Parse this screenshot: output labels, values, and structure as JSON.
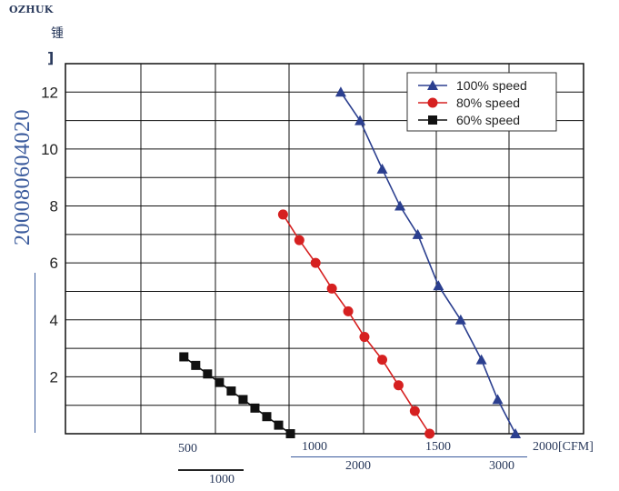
{
  "header": {
    "brand": "OZHUK",
    "corner_char": "锺",
    "corner_mark": "]",
    "vertical_stamp": "200080604020"
  },
  "chart_data": {
    "type": "line",
    "x_range": [
      0,
      3500
    ],
    "ylim": [
      0,
      13
    ],
    "yticks": [
      2,
      4,
      6,
      8,
      10,
      12
    ],
    "legend_position": "top-right",
    "grid": true,
    "series": [
      {
        "name": "100% speed",
        "marker": "triangle",
        "color": "#2b3f8f",
        "x": [
          1860,
          1990,
          2140,
          2260,
          2380,
          2520,
          2670,
          2810,
          2920,
          3040
        ],
        "y": [
          12,
          11,
          9.3,
          8,
          7,
          5.2,
          4,
          2.6,
          1.2,
          0
        ]
      },
      {
        "name": "80% speed",
        "marker": "circle",
        "color": "#d62020",
        "x": [
          1470,
          1580,
          1690,
          1800,
          1910,
          2020,
          2140,
          2250,
          2360,
          2460
        ],
        "y": [
          7.7,
          6.8,
          6,
          5.1,
          4.3,
          3.4,
          2.6,
          1.7,
          0.8,
          0
        ]
      },
      {
        "name": "60% speed",
        "marker": "square",
        "color": "#111111",
        "x": [
          800,
          880,
          960,
          1040,
          1120,
          1200,
          1280,
          1360,
          1440,
          1520
        ],
        "y": [
          2.7,
          2.4,
          2.1,
          1.8,
          1.5,
          1.2,
          0.9,
          0.6,
          0.3,
          0
        ]
      }
    ]
  },
  "under_labels": {
    "row1": [
      "500",
      "1000",
      "1500",
      "2000[CFM]"
    ],
    "row2": [
      "2000",
      "3000"
    ],
    "row3": [
      "1000"
    ]
  }
}
